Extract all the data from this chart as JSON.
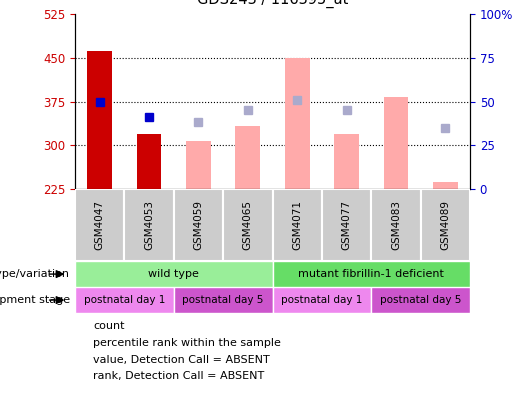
{
  "title": "GDS243 / 116395_at",
  "samples": [
    "GSM4047",
    "GSM4053",
    "GSM4059",
    "GSM4065",
    "GSM4071",
    "GSM4077",
    "GSM4083",
    "GSM4089"
  ],
  "count_values": [
    462,
    320,
    null,
    null,
    null,
    null,
    null,
    null
  ],
  "percentile_values": [
    375,
    348,
    null,
    null,
    null,
    null,
    null,
    null
  ],
  "absent_value_values": [
    null,
    null,
    308,
    333,
    450,
    320,
    382,
    237
  ],
  "absent_rank_values": [
    null,
    null,
    340,
    360,
    378,
    360,
    null,
    330
  ],
  "ylim_left": [
    225,
    525
  ],
  "ylim_right": [
    0,
    100
  ],
  "yticks_left": [
    225,
    300,
    375,
    450,
    525
  ],
  "yticks_right": [
    0,
    25,
    50,
    75,
    100
  ],
  "count_color": "#cc0000",
  "percentile_color": "#0000cc",
  "absent_value_color": "#ffaaaa",
  "absent_rank_color": "#aaaacc",
  "genotype_groups": [
    {
      "label": "wild type",
      "start": 0,
      "end": 4,
      "color": "#99ee99"
    },
    {
      "label": "mutant fibrillin-1 deficient",
      "start": 4,
      "end": 8,
      "color": "#66dd66"
    }
  ],
  "development_groups": [
    {
      "label": "postnatal day 1",
      "start": 0,
      "end": 2,
      "color": "#ee88ee"
    },
    {
      "label": "postnatal day 5",
      "start": 2,
      "end": 4,
      "color": "#cc55cc"
    },
    {
      "label": "postnatal day 1",
      "start": 4,
      "end": 6,
      "color": "#ee88ee"
    },
    {
      "label": "postnatal day 5",
      "start": 6,
      "end": 8,
      "color": "#cc55cc"
    }
  ],
  "legend_items": [
    {
      "label": "count",
      "color": "#cc0000"
    },
    {
      "label": "percentile rank within the sample",
      "color": "#0000cc"
    },
    {
      "label": "value, Detection Call = ABSENT",
      "color": "#ffaaaa"
    },
    {
      "label": "rank, Detection Call = ABSENT",
      "color": "#aaaacc"
    }
  ],
  "left_axis_color": "#cc0000",
  "right_axis_color": "#0000cc",
  "sample_box_color": "#cccccc",
  "label_row1": "genotype/variation",
  "label_row2": "development stage",
  "grid_yticks": [
    300,
    375,
    450
  ]
}
